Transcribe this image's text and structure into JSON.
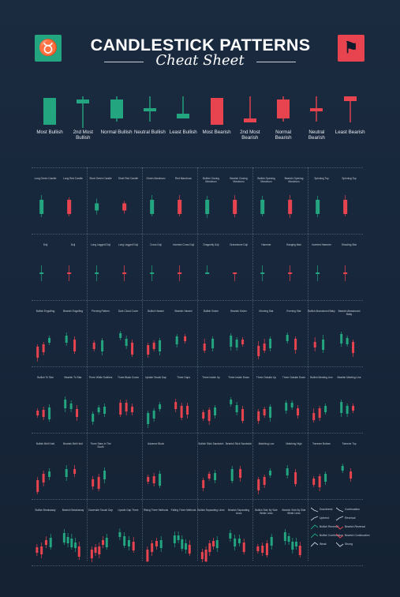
{
  "header": {
    "title": "CANDLESTICK PATTERNS",
    "subtitle": "Cheat Sheet",
    "bull_logo_icon": "bull-head-icon",
    "bear_logo_icon": "bear-head-icon"
  },
  "colors": {
    "background": "#17263a",
    "bullish": "#23a57f",
    "bearish": "#e8444f",
    "text": "#ffffff",
    "grid_lines": "#4a5a70"
  },
  "strength_scale": [
    {
      "label": "Most Bullish",
      "type": "bull"
    },
    {
      "label": "2nd Most Bullish",
      "type": "bull"
    },
    {
      "label": "Normal Bullish",
      "type": "bull"
    },
    {
      "label": "Neutral Bullish",
      "type": "bull"
    },
    {
      "label": "Least Bullish",
      "type": "bull"
    },
    {
      "label": "Most Bearish",
      "type": "bear"
    },
    {
      "label": "2nd Most Bearish",
      "type": "bear"
    },
    {
      "label": "Normal Bearish",
      "type": "bear"
    },
    {
      "label": "Neutral Bearish",
      "type": "bear"
    },
    {
      "label": "Least Bearish",
      "type": "bear"
    }
  ],
  "pattern_rows": [
    {
      "cells": [
        {
          "names": [
            "Long Green Candle",
            "Long Red Candle"
          ]
        },
        {
          "names": [
            "Short Green Candle",
            "Short Red Candle"
          ]
        },
        {
          "names": [
            "Green Marubozu",
            "Red Marubozu"
          ]
        },
        {
          "names": [
            "Bullish Closing Marubozu",
            "Bearish Closing Marubozu"
          ]
        },
        {
          "names": [
            "Bullish Opening Marubozu",
            "Bearish Opening Marubozu"
          ]
        },
        {
          "names": [
            "Spinning Top",
            "Spinning Top"
          ]
        }
      ]
    },
    {
      "cells": [
        {
          "names": [
            "Doji",
            "Doji"
          ]
        },
        {
          "names": [
            "Long Legged Doji",
            "Long Legged Doji"
          ]
        },
        {
          "names": [
            "Cross Doji",
            "Inverted Cross Doji"
          ]
        },
        {
          "names": [
            "Dragonfly Doji",
            "Gravestone Doji"
          ]
        },
        {
          "names": [
            "Hammer",
            "Hanging Man"
          ]
        },
        {
          "names": [
            "Inverted Hammer",
            "Shooting Star"
          ]
        }
      ]
    },
    {
      "cells": [
        {
          "names": [
            "Bullish Engulfing",
            "Bearish Engulfing"
          ]
        },
        {
          "names": [
            "Piercing Pattern",
            "Dark Cloud Cover"
          ]
        },
        {
          "names": [
            "Bullish Harami",
            "Bearish Harami"
          ]
        },
        {
          "names": [
            "Bullish Kicker",
            "Bearish Kicker"
          ]
        },
        {
          "names": [
            "Morning Star",
            "Evening Star"
          ]
        },
        {
          "names": [
            "Bullish Abandoned Baby",
            "Bearish Abandoned Baby"
          ]
        }
      ]
    },
    {
      "cells": [
        {
          "names": [
            "Bullish Tri Star",
            "Bearish Tri Star"
          ]
        },
        {
          "names": [
            "Three White Soldiers",
            "Three Black Crows"
          ]
        },
        {
          "names": [
            "Upside Tasuki Gap",
            "Three Gaps"
          ]
        },
        {
          "names": [
            "Three Inside Up",
            "Three Inside Down"
          ]
        },
        {
          "names": [
            "Three Outside Up",
            "Three Outside Down"
          ]
        },
        {
          "names": [
            "Bullish Meeting Line",
            "Bearish Meeting Line"
          ]
        }
      ]
    },
    {
      "cells": [
        {
          "names": [
            "Bullish Belt Hold",
            "Bearish Belt Hold"
          ]
        },
        {
          "names": [
            "Three Stars in The South",
            ""
          ]
        },
        {
          "names": [
            "Advance Block",
            ""
          ]
        },
        {
          "names": [
            "Bullish Stick Sandwich",
            "Bearish Stick Sandwich"
          ]
        },
        {
          "names": [
            "Matching Low",
            "Matching High"
          ]
        },
        {
          "names": [
            "Tweezer Bottom",
            "Tweezer Top"
          ]
        }
      ]
    },
    {
      "cells": [
        {
          "names": [
            "Bullish Breakaway",
            "Bearish Breakaway"
          ]
        },
        {
          "names": [
            "Downside Tasuki Gap",
            "Upside Gap Three"
          ]
        },
        {
          "names": [
            "Rising Three Methods",
            "Falling Three Methods"
          ]
        },
        {
          "names": [
            "Bullish Separating Lines",
            "Bearish Separating Lines"
          ]
        },
        {
          "names": [
            "Bullish Side By Side White Lines",
            "Bearish Side By Side White Lines"
          ]
        },
        {
          "names": [
            "",
            ""
          ]
        }
      ]
    }
  ],
  "legend": [
    {
      "left": "Downtrend",
      "right": "Continuation"
    },
    {
      "left": "Uptrend",
      "right": "Reversal"
    },
    {
      "left": "Bullish Reversal",
      "right": "Bearish Reversal"
    },
    {
      "left": "Bullish Continuation",
      "right": "Bearish Continuation"
    },
    {
      "left": "Weak",
      "right": "Strong"
    }
  ]
}
